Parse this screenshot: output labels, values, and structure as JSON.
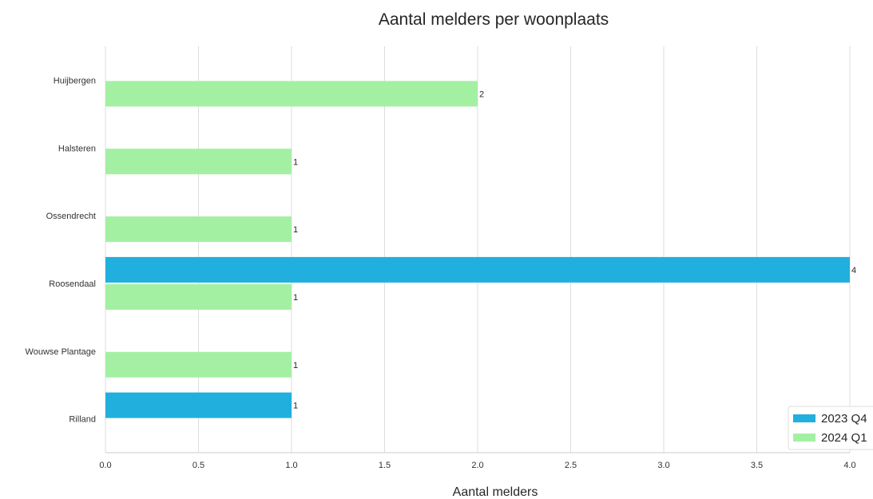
{
  "chart_data": {
    "type": "bar",
    "orientation": "horizontal",
    "title": "Aantal melders per woonplaats",
    "xlabel": "Aantal melders",
    "ylabel": "",
    "xlim": [
      0,
      4.0
    ],
    "xticks": [
      "0.0",
      "0.5",
      "1.0",
      "1.5",
      "2.0",
      "2.5",
      "3.0",
      "3.5",
      "4.0"
    ],
    "grid": "vertical",
    "legend_position": "bottom-right",
    "categories": [
      "Huijbergen",
      "Halsteren",
      "Ossendrecht",
      "Roosendaal",
      "Wouwse Plantage",
      "Rilland"
    ],
    "series": [
      {
        "name": "2023 Q4",
        "color": "#21afde",
        "values": [
          null,
          null,
          null,
          4,
          null,
          1
        ]
      },
      {
        "name": "2024 Q1",
        "color": "#a3f0a3",
        "values": [
          2,
          1,
          1,
          1,
          1,
          null
        ]
      }
    ]
  }
}
